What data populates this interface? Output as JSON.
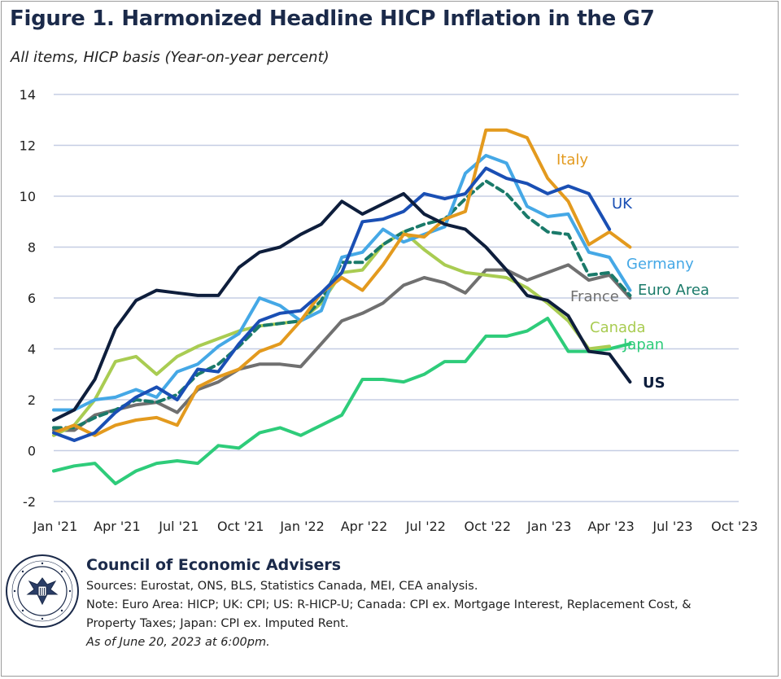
{
  "title": "Figure 1. Harmonized Headline HICP Inflation in the G7",
  "subtitle": "All items, HICP basis (Year-on-year percent)",
  "footer": {
    "org": "Council of Economic Advisers",
    "sources": "Sources: Eurostat, ONS, BLS, Statistics Canada, MEI, CEA analysis.",
    "note1": "Note: Euro Area: HICP; UK: CPI; US: R-HICP-U; Canada: CPI ex. Mortgage Interest, Replacement Cost, &",
    "note2": "Property Taxes; Japan: CPI ex. Imputed Rent.",
    "asof": "As of June 20, 2023 at 6:00pm.",
    "seal_text": "EXECUTIVE OFFICE OF THE PRESIDENT OF THE UNITED STATES"
  },
  "chart_data": {
    "type": "line",
    "x": [
      "2021-01",
      "2021-02",
      "2021-03",
      "2021-04",
      "2021-05",
      "2021-06",
      "2021-07",
      "2021-08",
      "2021-09",
      "2021-10",
      "2021-11",
      "2021-12",
      "2022-01",
      "2022-02",
      "2022-03",
      "2022-04",
      "2022-05",
      "2022-06",
      "2022-07",
      "2022-08",
      "2022-09",
      "2022-10",
      "2022-11",
      "2022-12",
      "2023-01",
      "2023-02",
      "2023-03",
      "2023-04",
      "2023-05"
    ],
    "xticks": [
      "Jan '21",
      "Apr '21",
      "Jul '21",
      "Oct '21",
      "Jan '22",
      "Apr '22",
      "Jul '22",
      "Oct '22",
      "Jan '23",
      "Apr '23",
      "Jul '23",
      "Oct '23"
    ],
    "ylim": [
      -2,
      14
    ],
    "yticks": [
      -2,
      0,
      2,
      4,
      6,
      8,
      10,
      12,
      14
    ],
    "grid": true,
    "legend": "inline labels at line ends",
    "series": [
      {
        "name": "Japan",
        "color": "#2ecc7a",
        "values": [
          -0.8,
          -0.6,
          -0.5,
          -1.3,
          -0.8,
          -0.5,
          -0.4,
          -0.5,
          0.2,
          0.1,
          0.7,
          0.9,
          0.6,
          1.0,
          1.4,
          2.8,
          2.8,
          2.7,
          3.0,
          3.5,
          3.5,
          4.5,
          4.5,
          4.7,
          5.2,
          3.9,
          3.9,
          4.0,
          4.2
        ]
      },
      {
        "name": "France",
        "color": "#707070",
        "values": [
          0.8,
          0.8,
          1.4,
          1.6,
          1.8,
          1.9,
          1.5,
          2.4,
          2.7,
          3.2,
          3.4,
          3.4,
          3.3,
          4.2,
          5.1,
          5.4,
          5.8,
          6.5,
          6.8,
          6.6,
          6.2,
          7.1,
          7.1,
          6.7,
          7.0,
          7.3,
          6.7,
          6.9,
          6.0
        ]
      },
      {
        "name": "Canada",
        "color": "#a9cc52",
        "values": [
          0.6,
          1.0,
          2.0,
          3.5,
          3.7,
          3.0,
          3.7,
          4.1,
          4.4,
          4.7,
          4.9,
          5.0,
          5.1,
          5.8,
          7.0,
          7.1,
          8.1,
          8.6,
          7.9,
          7.3,
          7.0,
          6.9,
          6.8,
          6.4,
          5.8,
          5.1,
          4.0,
          4.1,
          null
        ]
      },
      {
        "name": "Euro Area",
        "color": "#1a7a6a",
        "dashed": true,
        "values": [
          0.9,
          0.9,
          1.3,
          1.6,
          2.0,
          1.9,
          2.2,
          3.0,
          3.4,
          4.1,
          4.9,
          5.0,
          5.1,
          5.9,
          7.4,
          7.4,
          8.1,
          8.6,
          8.9,
          9.1,
          9.9,
          10.6,
          10.1,
          9.2,
          8.6,
          8.5,
          6.9,
          7.0,
          6.1
        ]
      },
      {
        "name": "Germany",
        "color": "#45a8e6",
        "values": [
          1.6,
          1.6,
          2.0,
          2.1,
          2.4,
          2.1,
          3.1,
          3.4,
          4.1,
          4.6,
          6.0,
          5.7,
          5.1,
          5.5,
          7.6,
          7.8,
          8.7,
          8.2,
          8.5,
          8.8,
          10.9,
          11.6,
          11.3,
          9.6,
          9.2,
          9.3,
          7.8,
          7.6,
          6.3
        ]
      },
      {
        "name": "Italy",
        "color": "#e39a1e",
        "values": [
          0.7,
          1.0,
          0.6,
          1.0,
          1.2,
          1.3,
          1.0,
          2.5,
          2.9,
          3.2,
          3.9,
          4.2,
          5.1,
          6.2,
          6.8,
          6.3,
          7.3,
          8.5,
          8.4,
          9.1,
          9.4,
          12.6,
          12.6,
          12.3,
          10.7,
          9.8,
          8.1,
          8.6,
          8.0
        ]
      },
      {
        "name": "UK",
        "color": "#1a4fb4",
        "values": [
          0.7,
          0.4,
          0.7,
          1.5,
          2.1,
          2.5,
          2.0,
          3.2,
          3.1,
          4.2,
          5.1,
          5.4,
          5.5,
          6.2,
          7.0,
          9.0,
          9.1,
          9.4,
          10.1,
          9.9,
          10.1,
          11.1,
          10.7,
          10.5,
          10.1,
          10.4,
          10.1,
          8.7,
          null
        ]
      },
      {
        "name": "US",
        "color": "#0e1e3c",
        "values": [
          1.2,
          1.6,
          2.8,
          4.8,
          5.9,
          6.3,
          6.2,
          6.1,
          6.1,
          7.2,
          7.8,
          8.0,
          8.5,
          8.9,
          9.8,
          9.3,
          9.7,
          10.1,
          9.3,
          8.9,
          8.7,
          8.0,
          7.1,
          6.1,
          5.9,
          5.3,
          3.9,
          3.8,
          2.7
        ]
      }
    ]
  }
}
